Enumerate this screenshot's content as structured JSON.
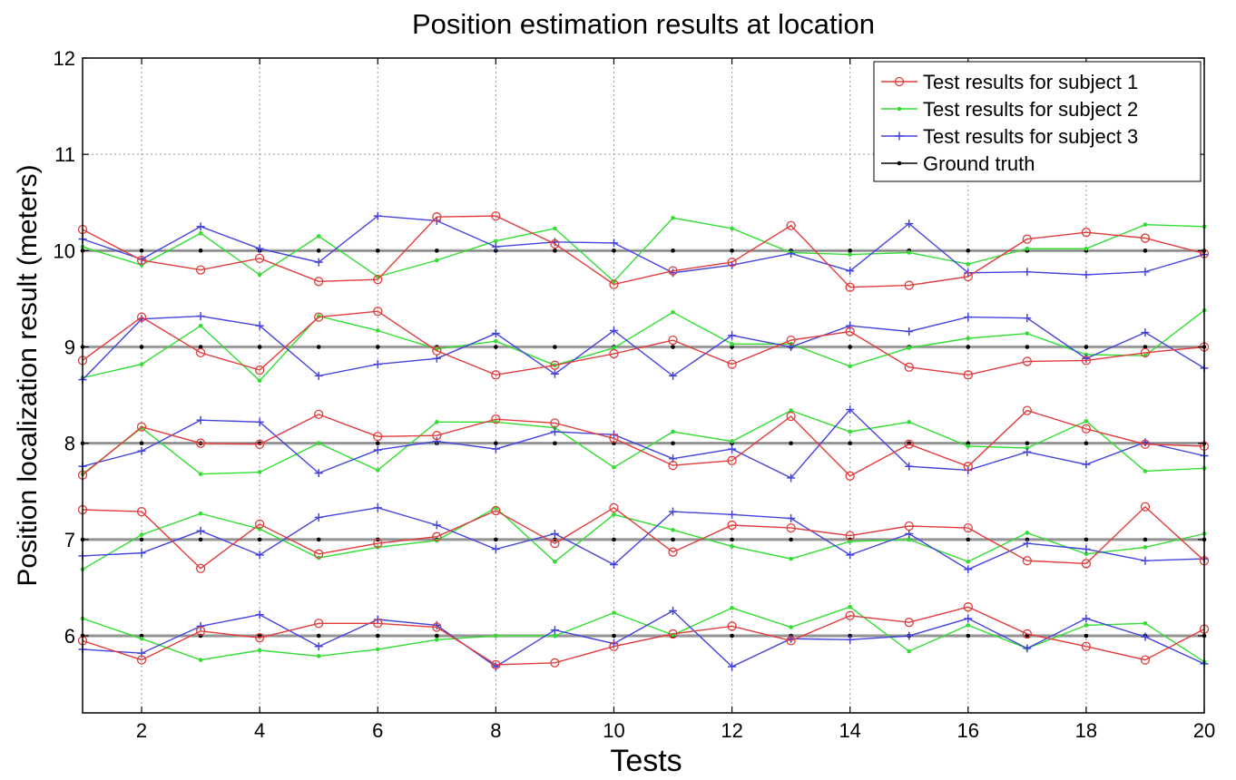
{
  "chart_data": {
    "type": "line",
    "title": "Position estimation results at location",
    "xlabel": "Tests",
    "ylabel": "Position localization result (meters)",
    "xlim": [
      1,
      20
    ],
    "ylim": [
      5.2,
      12
    ],
    "xticks": [
      2,
      4,
      6,
      8,
      10,
      12,
      14,
      16,
      18,
      20
    ],
    "yticks": [
      6,
      7,
      8,
      9,
      10,
      11,
      12
    ],
    "grid": true,
    "legend_position": "top-right",
    "x": [
      1,
      2,
      3,
      4,
      5,
      6,
      7,
      8,
      9,
      10,
      11,
      12,
      13,
      14,
      15,
      16,
      17,
      18,
      19,
      20
    ],
    "series": [
      {
        "name": "Test results for subject 1",
        "color": "#e03c3c",
        "marker": "circle",
        "groups": [
          [
            10.22,
            9.9,
            9.8,
            9.92,
            9.68,
            9.7,
            10.35,
            10.36,
            10.07,
            9.65,
            9.79,
            9.88,
            10.26,
            9.62,
            9.64,
            9.73,
            10.12,
            10.19,
            10.13,
            9.97
          ],
          [
            8.86,
            9.31,
            8.94,
            8.76,
            9.31,
            9.37,
            8.96,
            8.71,
            8.81,
            8.93,
            9.07,
            8.82,
            9.07,
            9.16,
            8.79,
            8.71,
            8.85,
            8.86,
            8.94,
            9.0
          ],
          [
            7.67,
            8.17,
            8.0,
            7.99,
            8.3,
            8.07,
            8.08,
            8.25,
            8.21,
            8.05,
            7.77,
            7.82,
            8.28,
            7.66,
            7.99,
            7.76,
            8.34,
            8.15,
            7.99,
            7.97
          ],
          [
            7.31,
            7.29,
            6.7,
            7.16,
            6.85,
            6.96,
            7.03,
            7.3,
            6.96,
            7.33,
            6.87,
            7.15,
            7.12,
            7.04,
            7.14,
            7.12,
            6.78,
            6.75,
            7.34,
            6.78
          ],
          [
            5.95,
            5.75,
            6.05,
            5.98,
            6.13,
            6.13,
            6.09,
            5.7,
            5.72,
            5.89,
            6.02,
            6.1,
            5.95,
            6.21,
            6.14,
            6.3,
            6.02,
            5.89,
            5.75,
            6.07
          ]
        ]
      },
      {
        "name": "Test results for subject 2",
        "color": "#33dd33",
        "marker": "dot",
        "groups": [
          [
            10.04,
            9.85,
            10.18,
            9.75,
            10.15,
            9.73,
            9.9,
            10.1,
            10.23,
            9.68,
            10.34,
            10.23,
            9.98,
            9.96,
            9.98,
            9.86,
            10.02,
            10.02,
            10.27,
            10.25
          ],
          [
            8.68,
            8.82,
            9.22,
            8.65,
            9.32,
            9.17,
            8.98,
            9.06,
            8.81,
            8.99,
            9.36,
            9.03,
            9.03,
            8.8,
            8.99,
            9.09,
            9.14,
            8.92,
            8.91,
            9.38
          ],
          [
            7.68,
            8.16,
            7.68,
            7.7,
            8.0,
            7.72,
            8.22,
            8.22,
            8.16,
            7.75,
            8.12,
            8.02,
            8.34,
            8.12,
            8.22,
            7.97,
            7.95,
            8.23,
            7.71,
            7.74
          ],
          [
            6.69,
            7.05,
            7.27,
            7.11,
            6.81,
            6.92,
            6.99,
            7.33,
            6.77,
            7.26,
            7.1,
            6.93,
            6.8,
            6.98,
            7.0,
            6.77,
            7.07,
            6.85,
            6.92,
            7.06
          ],
          [
            6.18,
            5.97,
            5.75,
            5.85,
            5.79,
            5.86,
            5.96,
            6.0,
            6.0,
            6.24,
            6.01,
            6.29,
            6.09,
            6.3,
            5.84,
            6.11,
            5.87,
            6.11,
            6.13,
            5.73
          ]
        ]
      },
      {
        "name": "Test results for subject 3",
        "color": "#4444dd",
        "marker": "plus",
        "groups": [
          [
            10.12,
            9.91,
            10.25,
            10.02,
            9.88,
            10.36,
            10.31,
            10.04,
            10.09,
            10.08,
            9.77,
            9.85,
            9.97,
            9.79,
            10.28,
            9.77,
            9.78,
            9.75,
            9.78,
            9.96
          ],
          [
            8.66,
            9.29,
            9.32,
            9.22,
            8.7,
            8.82,
            8.88,
            9.14,
            8.72,
            9.17,
            8.7,
            9.12,
            9.0,
            9.22,
            9.16,
            9.31,
            9.3,
            8.88,
            9.15,
            8.78
          ],
          [
            7.76,
            7.92,
            8.24,
            8.22,
            7.69,
            7.93,
            8.02,
            7.94,
            8.12,
            8.09,
            7.84,
            7.94,
            7.64,
            8.35,
            7.76,
            7.72,
            7.91,
            7.78,
            8.01,
            7.87
          ],
          [
            6.83,
            6.86,
            7.09,
            6.84,
            7.23,
            7.33,
            7.15,
            6.9,
            7.06,
            6.74,
            7.29,
            7.26,
            7.22,
            6.84,
            7.06,
            6.69,
            6.96,
            6.9,
            6.78,
            6.8
          ],
          [
            5.86,
            5.82,
            6.1,
            6.22,
            5.89,
            6.17,
            6.11,
            5.68,
            6.06,
            5.92,
            6.26,
            5.68,
            5.97,
            5.96,
            6.0,
            6.18,
            5.87,
            6.18,
            5.99,
            5.71
          ]
        ]
      },
      {
        "name": "Ground truth",
        "color": "#000000",
        "marker": "dot",
        "groups": [
          [
            10,
            10,
            10,
            10,
            10,
            10,
            10,
            10,
            10,
            10,
            10,
            10,
            10,
            10,
            10,
            10,
            10,
            10,
            10,
            10
          ],
          [
            9,
            9,
            9,
            9,
            9,
            9,
            9,
            9,
            9,
            9,
            9,
            9,
            9,
            9,
            9,
            9,
            9,
            9,
            9,
            9
          ],
          [
            8,
            8,
            8,
            8,
            8,
            8,
            8,
            8,
            8,
            8,
            8,
            8,
            8,
            8,
            8,
            8,
            8,
            8,
            8,
            8
          ],
          [
            7,
            7,
            7,
            7,
            7,
            7,
            7,
            7,
            7,
            7,
            7,
            7,
            7,
            7,
            7,
            7,
            7,
            7,
            7,
            7
          ],
          [
            6,
            6,
            6,
            6,
            6,
            6,
            6,
            6,
            6,
            6,
            6,
            6,
            6,
            6,
            6,
            6,
            6,
            6,
            6,
            6
          ]
        ]
      }
    ]
  }
}
